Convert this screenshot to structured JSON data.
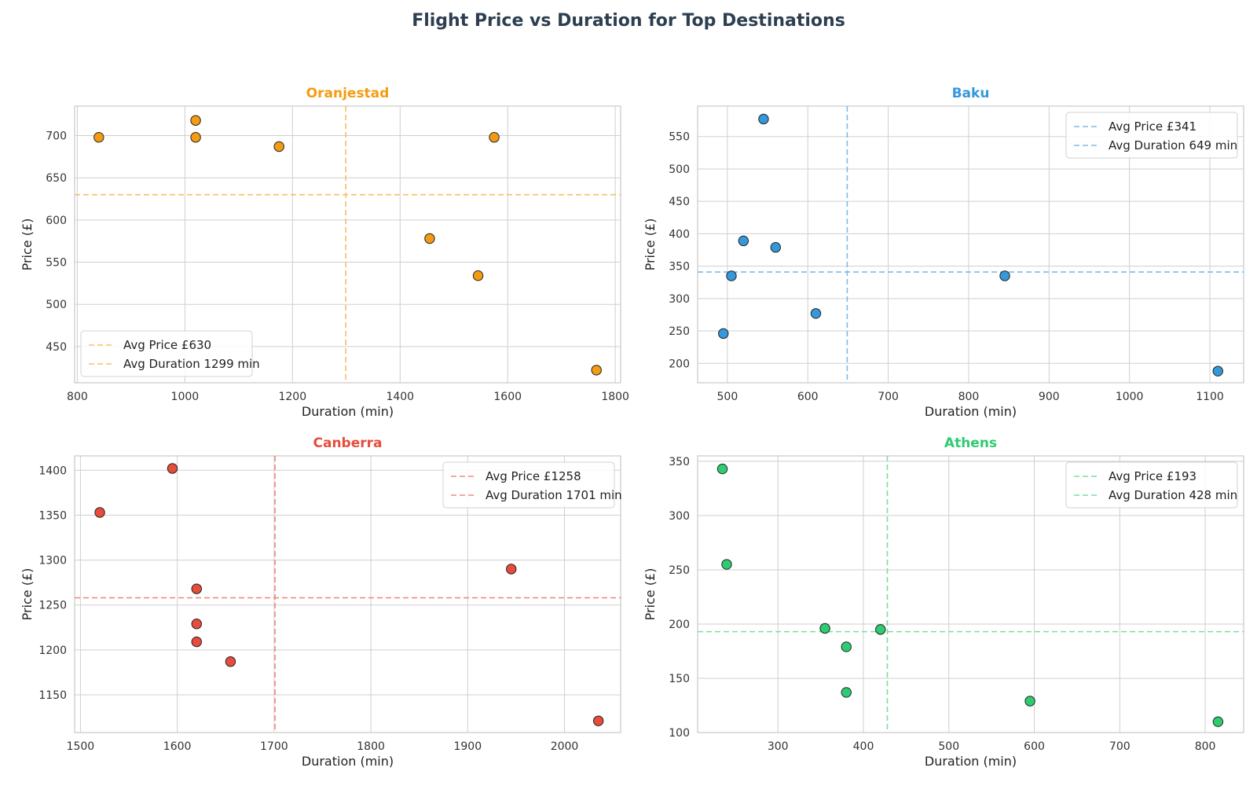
{
  "title": "Flight Price vs Duration for Top Destinations",
  "chart_data": [
    {
      "type": "scatter",
      "title": "Oranjestad",
      "color": "#f39c12",
      "xlabel": "Duration (min)",
      "ylabel": "Price (£)",
      "xlim": [
        795,
        1810
      ],
      "ylim": [
        407,
        735
      ],
      "xticks": [
        800,
        1000,
        1200,
        1400,
        1600,
        1800
      ],
      "yticks": [
        450,
        500,
        550,
        600,
        650,
        700
      ],
      "x": [
        840,
        1020,
        1020,
        1175,
        1575,
        1455,
        1545,
        1765
      ],
      "y": [
        698,
        718,
        698,
        687,
        698,
        578,
        534,
        422
      ],
      "avg_price": 630,
      "avg_duration": 1299,
      "legend": [
        "Avg Price £630",
        "Avg Duration 1299 min"
      ],
      "legend_loc": "lower-left",
      "grid": true
    },
    {
      "type": "scatter",
      "title": "Baku",
      "color": "#3498db",
      "xlabel": "Duration (min)",
      "ylabel": "Price (£)",
      "xlim": [
        463,
        1142
      ],
      "ylim": [
        170,
        597
      ],
      "xticks": [
        500,
        600,
        700,
        800,
        900,
        1000,
        1100
      ],
      "yticks": [
        200,
        250,
        300,
        350,
        400,
        450,
        500,
        550
      ],
      "x": [
        545,
        520,
        560,
        505,
        845,
        610,
        495,
        1110
      ],
      "y": [
        577,
        389,
        379,
        335,
        335,
        277,
        246,
        188
      ],
      "avg_price": 341,
      "avg_duration": 649,
      "legend": [
        "Avg Price £341",
        "Avg Duration 649 min"
      ],
      "legend_loc": "upper-right",
      "grid": true
    },
    {
      "type": "scatter",
      "title": "Canberra",
      "color": "#e74c3c",
      "xlabel": "Duration (min)",
      "ylabel": "Price (£)",
      "xlim": [
        1494,
        2058
      ],
      "ylim": [
        1108,
        1416
      ],
      "xticks": [
        1500,
        1600,
        1700,
        1800,
        1900,
        2000
      ],
      "yticks": [
        1150,
        1200,
        1250,
        1300,
        1350,
        1400
      ],
      "x": [
        1595,
        1520,
        1945,
        1620,
        1620,
        1620,
        1655,
        2035
      ],
      "y": [
        1402,
        1353,
        1290,
        1268,
        1229,
        1209,
        1187,
        1121
      ],
      "avg_price": 1258,
      "avg_duration": 1701,
      "legend": [
        "Avg Price £1258",
        "Avg Duration 1701 min"
      ],
      "legend_loc": "upper-right",
      "grid": true
    },
    {
      "type": "scatter",
      "title": "Athens",
      "color": "#2ecc71",
      "xlabel": "Duration (min)",
      "ylabel": "Price (£)",
      "xlim": [
        206,
        845
      ],
      "ylim": [
        100,
        355
      ],
      "xticks": [
        300,
        400,
        500,
        600,
        700,
        800
      ],
      "yticks": [
        100,
        150,
        200,
        250,
        300,
        350
      ],
      "x": [
        235,
        240,
        355,
        380,
        420,
        380,
        595,
        815
      ],
      "y": [
        343,
        255,
        196,
        179,
        195,
        137,
        129,
        110
      ],
      "avg_price": 193,
      "avg_duration": 428,
      "legend": [
        "Avg Price £193",
        "Avg Duration 428 min"
      ],
      "legend_loc": "upper-right",
      "grid": true
    }
  ]
}
